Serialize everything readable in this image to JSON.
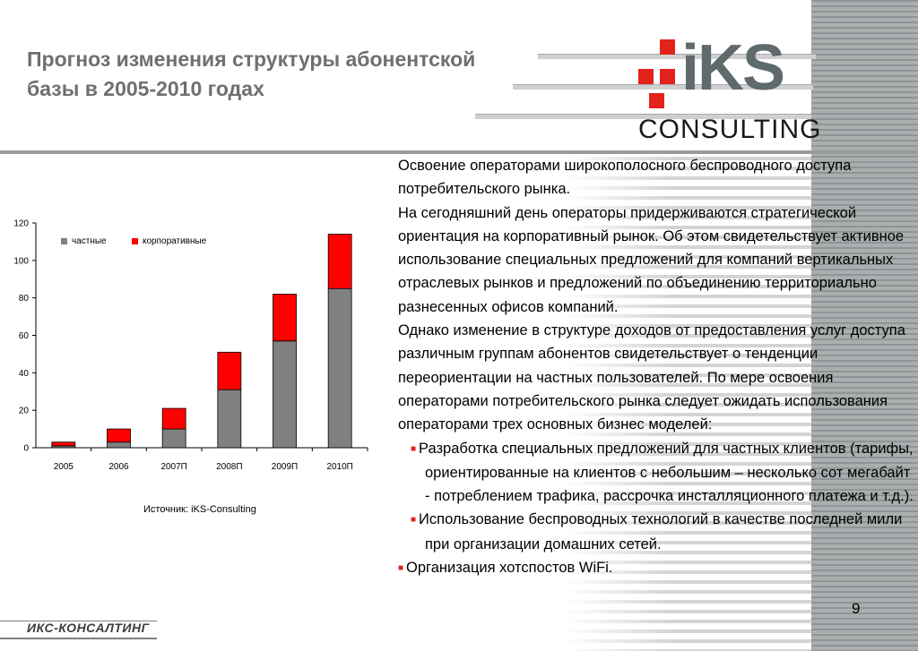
{
  "slide": {
    "title": "Прогноз изменения структуры абонентской базы в 2005-2010 годах",
    "page_number": "9",
    "footer_logo": "ИКС-КОНСАЛТИНГ",
    "source": "Источник: iKS-Consulting"
  },
  "logo": {
    "word": "iKS",
    "sub": "CONSULTING",
    "accent_color": "#e3221b",
    "text_color": "#5f6a6d"
  },
  "text_block": {
    "paragraphs": [
      "Освоение операторами широкополосного беспроводного доступа потребительского рынка.",
      "На сегодняшний день операторы придерживаются стратегической ориентация на корпоративный рынок. Об этом свидетельствует активное использование специальных предложений для компаний вертикальных отраслевых рынков и предложений по объединению территориально разнесенных офисов компаний.",
      "Однако изменение в структуре доходов от предоставления услуг доступа различным группам абонентов свидетельствует о тенденции переориентации на частных пользователей. По мере освоения операторами потребительского рынка следует ожидать использования операторами трех основных бизнес моделей:"
    ],
    "bullets": [
      "Разработка специальных предложений для частных клиентов (тарифы, ориентированные на клиентов с небольшим – несколько сот мегабайт - потреблением трафика, рассрочка инсталляционного платежа и т.д.).",
      "Использование беспроводных технологий в качестве последней мили при организации домашних сетей."
    ],
    "last_bullet": "Организация хотспостов WiFi."
  },
  "chart_data": {
    "type": "bar",
    "stacked": true,
    "categories": [
      "2005",
      "2006",
      "2007П",
      "2008П",
      "2009П",
      "2010П"
    ],
    "series": [
      {
        "name": "частные",
        "color": "#808080",
        "values": [
          1,
          3,
          10,
          31,
          57,
          85
        ]
      },
      {
        "name": "корпоративные",
        "color": "#ff0000",
        "values": [
          2,
          7,
          11,
          20,
          25,
          29
        ]
      }
    ],
    "ylim": [
      0,
      120
    ],
    "yticks": [
      "0",
      "20",
      "40",
      "60",
      "80",
      "100",
      "120"
    ],
    "legend_position": "top-left",
    "grid": false
  }
}
